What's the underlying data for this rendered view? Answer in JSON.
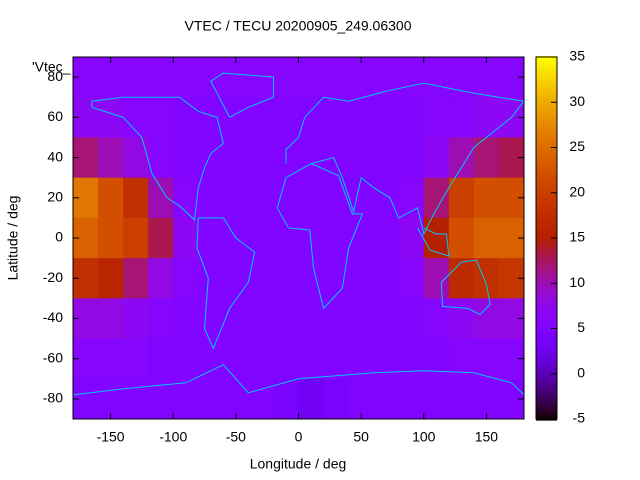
{
  "chart_data": {
    "type": "heatmap",
    "title": "VTEC / TECU 20200905_249.06300",
    "x_label": "Longitude / deg",
    "y_label": "Latitude / deg",
    "legend": "'Vtec_",
    "x": [
      -170,
      -150,
      -130,
      -110,
      -90,
      -70,
      -50,
      -30,
      -10,
      10,
      30,
      50,
      70,
      90,
      110,
      130,
      150,
      170
    ],
    "y": [
      80,
      60,
      40,
      20,
      0,
      -20,
      -40,
      -60,
      -80
    ],
    "z": [
      [
        6,
        6,
        6,
        6,
        6,
        6,
        6,
        6,
        6,
        6,
        6,
        6,
        6,
        6,
        6,
        6,
        6,
        6
      ],
      [
        7,
        7,
        6,
        6,
        5,
        5,
        5,
        5,
        5,
        5,
        5,
        5,
        5,
        5,
        6,
        6,
        7,
        7
      ],
      [
        12,
        10,
        8,
        6,
        5,
        5,
        5,
        5,
        5,
        5,
        5,
        5,
        5,
        5,
        7,
        10,
        12,
        13
      ],
      [
        26,
        22,
        18,
        10,
        6,
        5,
        5,
        5,
        5,
        5,
        5,
        5,
        5,
        6,
        12,
        20,
        22,
        22
      ],
      [
        24,
        22,
        20,
        13,
        7,
        5,
        5,
        5,
        5,
        5,
        5,
        5,
        5,
        7,
        15,
        22,
        24,
        24
      ],
      [
        18,
        16,
        12,
        8,
        6,
        5,
        5,
        5,
        5,
        5,
        5,
        5,
        5,
        6,
        10,
        17,
        18,
        19
      ],
      [
        8,
        8,
        7,
        6,
        5,
        5,
        5,
        5,
        5,
        5,
        5,
        5,
        5,
        5,
        6,
        7,
        8,
        8
      ],
      [
        6,
        6,
        6,
        5,
        5,
        5,
        5,
        5,
        5,
        5,
        5,
        5,
        5,
        5,
        5,
        6,
        6,
        6
      ],
      [
        5,
        5,
        5,
        5,
        5,
        5,
        5,
        5,
        4,
        3,
        4,
        5,
        5,
        5,
        5,
        5,
        5,
        5
      ]
    ],
    "xlim": [
      -180,
      180
    ],
    "ylim": [
      -90,
      90
    ],
    "xticks": [
      -150,
      -100,
      -50,
      0,
      50,
      100,
      150
    ],
    "yticks": [
      -80,
      -60,
      -40,
      -20,
      0,
      20,
      40,
      60,
      80
    ],
    "cblim": [
      -5,
      35
    ],
    "cbticks": [
      -5,
      0,
      5,
      10,
      15,
      20,
      25,
      30,
      35
    ]
  }
}
